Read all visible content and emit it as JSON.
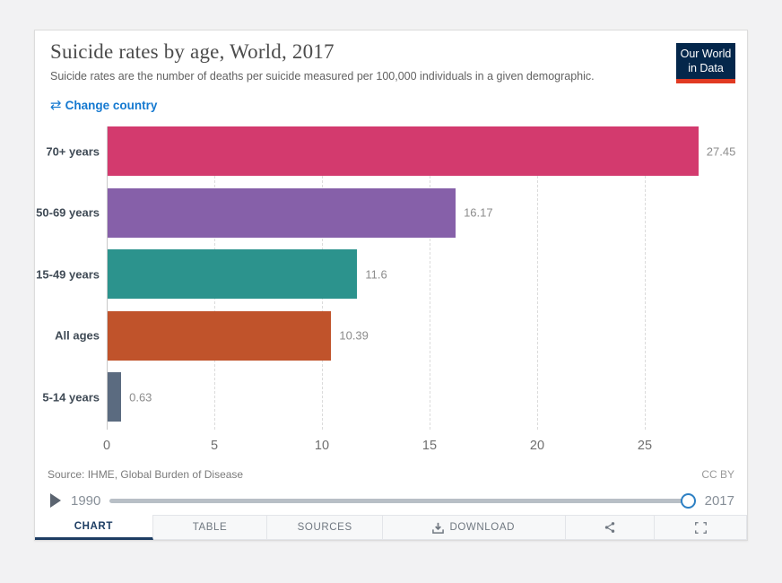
{
  "header": {
    "title": "Suicide rates by age, World, 2017",
    "subtitle": "Suicide rates are the number of deaths per suicide measured per 100,000 individuals in a given demographic.",
    "logo": {
      "line1": "Our World",
      "line2": "in Data",
      "bg_color": "#04274b",
      "accent_color": "#e13a22"
    },
    "change_country": {
      "label": "Change country",
      "icon": "swap-arrows",
      "color": "#1579d0"
    }
  },
  "chart_data": {
    "type": "bar",
    "orientation": "horizontal",
    "title": "Suicide rates by age, World, 2017",
    "categories": [
      "70+ years",
      "50-69 years",
      "15-49 years",
      "All ages",
      "5-14 years"
    ],
    "values": [
      27.45,
      16.17,
      11.6,
      10.39,
      0.63
    ],
    "value_labels": [
      "27.45",
      "16.17",
      "11.6",
      "10.39",
      "0.63"
    ],
    "bar_colors": [
      "#d33a6e",
      "#8660a9",
      "#2c938d",
      "#c0532b",
      "#5b6b80"
    ],
    "xlabel": "",
    "ylabel": "",
    "xlim": [
      0,
      29
    ],
    "xticks": [
      0,
      5,
      10,
      15,
      20,
      25
    ],
    "grid": "vertical-dashed",
    "legend": "none"
  },
  "footer": {
    "source": "Source: IHME, Global Burden of Disease",
    "license": "CC BY"
  },
  "timeline": {
    "start_year": "1990",
    "end_year": "2017",
    "handle_color": "#2d80c4"
  },
  "tabs": {
    "chart": "CHART",
    "table": "TABLE",
    "sources": "SOURCES",
    "download": "DOWNLOAD"
  }
}
